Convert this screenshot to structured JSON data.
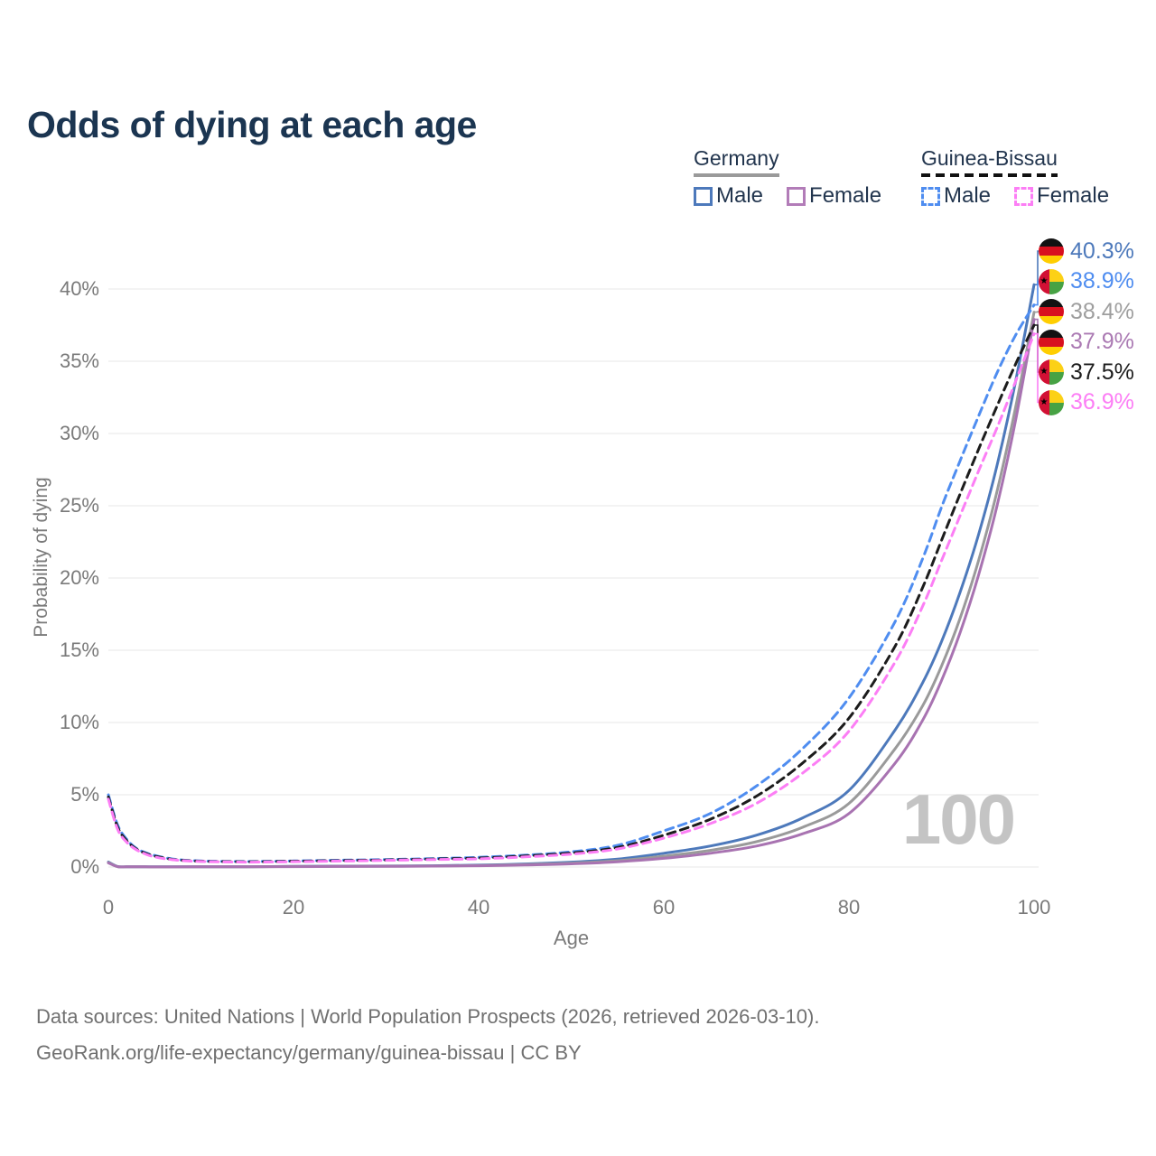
{
  "title": "Odds of dying at each age",
  "watermark": "100",
  "footer": {
    "line1": "Data sources: United Nations | World Population Prospects (2026, retrieved 2026-03-10).",
    "line2": "GeoRank.org/life-expectancy/germany/guinea-bissau | CC BY"
  },
  "legend": {
    "groups": [
      {
        "label": "Germany",
        "underline_style": "solid",
        "underline_color": "#9a9a9a",
        "items": [
          {
            "label": "Male",
            "color": "#4d79bb",
            "dash": false
          },
          {
            "label": "Female",
            "color": "#b27cb8",
            "dash": false
          }
        ]
      },
      {
        "label": "Guinea-Bissau",
        "underline_style": "dashed",
        "underline_color": "#111111",
        "items": [
          {
            "label": "Male",
            "color": "#4f8df0",
            "dash": true
          },
          {
            "label": "Female",
            "color": "#fc7ef5",
            "dash": true
          }
        ]
      }
    ]
  },
  "chart_data": {
    "type": "line",
    "title": "Odds of dying at each age",
    "xlabel": "Age",
    "ylabel": "Probability of dying",
    "xlim": [
      0,
      100
    ],
    "ylim": [
      0,
      42
    ],
    "x_ticks": [
      0,
      20,
      40,
      60,
      80,
      100
    ],
    "y_ticks": [
      {
        "value": 0,
        "label": "0%"
      },
      {
        "value": 5,
        "label": "5%"
      },
      {
        "value": 10,
        "label": "10%"
      },
      {
        "value": 15,
        "label": "15%"
      },
      {
        "value": 20,
        "label": "20%"
      },
      {
        "value": 25,
        "label": "25%"
      },
      {
        "value": 30,
        "label": "30%"
      },
      {
        "value": 35,
        "label": "35%"
      },
      {
        "value": 40,
        "label": "40%"
      }
    ],
    "grid": true,
    "legend_position": "top-right",
    "ages": [
      0,
      1,
      2,
      3,
      4,
      5,
      7,
      10,
      15,
      20,
      25,
      30,
      35,
      40,
      45,
      50,
      55,
      60,
      65,
      70,
      75,
      80,
      85,
      88,
      90,
      92,
      94,
      96,
      98,
      100
    ],
    "unit": "percent",
    "series": [
      {
        "id": "germany-male",
        "name": "Germany Male",
        "country": "Germany",
        "sex": "Male",
        "color": "#4d79bb",
        "dash": false,
        "end_label": "40.3%",
        "values": [
          0.35,
          0.03,
          0.02,
          0.015,
          0.012,
          0.01,
          0.01,
          0.012,
          0.02,
          0.05,
          0.06,
          0.07,
          0.09,
          0.13,
          0.21,
          0.34,
          0.55,
          0.95,
          1.45,
          2.2,
          3.4,
          5.3,
          9.5,
          12.8,
          15.6,
          19.0,
          23.0,
          27.8,
          33.6,
          40.3
        ]
      },
      {
        "id": "germany-combined",
        "name": "Germany Combined",
        "country": "Germany",
        "sex": "Combined",
        "color": "#9a9a9a",
        "dash": false,
        "end_label": "38.4%",
        "values": [
          0.31,
          0.027,
          0.018,
          0.013,
          0.011,
          0.009,
          0.009,
          0.011,
          0.016,
          0.035,
          0.045,
          0.055,
          0.07,
          0.1,
          0.17,
          0.27,
          0.44,
          0.75,
          1.15,
          1.75,
          2.75,
          4.4,
          8.2,
          11.2,
          13.9,
          17.2,
          21.2,
          26.0,
          31.8,
          38.4
        ]
      },
      {
        "id": "germany-female",
        "name": "Germany Female",
        "country": "Germany",
        "sex": "Female",
        "color": "#a873b1",
        "dash": false,
        "end_label": "37.9%",
        "values": [
          0.28,
          0.024,
          0.015,
          0.012,
          0.01,
          0.008,
          0.008,
          0.01,
          0.014,
          0.025,
          0.035,
          0.045,
          0.06,
          0.09,
          0.14,
          0.22,
          0.36,
          0.6,
          0.95,
          1.45,
          2.3,
          3.7,
          7.2,
          10.2,
          12.9,
          16.2,
          20.2,
          25.0,
          30.9,
          37.9
        ]
      },
      {
        "id": "guinea-bissau-male",
        "name": "Guinea-Bissau Male",
        "country": "Guinea-Bissau",
        "sex": "Male",
        "color": "#4f8df0",
        "dash": true,
        "end_label": "38.9%",
        "values": [
          5.0,
          2.9,
          1.9,
          1.3,
          1.0,
          0.8,
          0.55,
          0.42,
          0.38,
          0.42,
          0.47,
          0.52,
          0.58,
          0.67,
          0.82,
          1.05,
          1.5,
          2.5,
          3.7,
          5.6,
          8.2,
          11.7,
          17.0,
          21.4,
          24.9,
          28.1,
          31.2,
          34.2,
          36.8,
          38.9
        ]
      },
      {
        "id": "guinea-bissau-combined",
        "name": "Guinea-Bissau Combined",
        "country": "Guinea-Bissau",
        "sex": "Combined",
        "color": "#1c1c1c",
        "dash": true,
        "end_label": "37.5%",
        "values": [
          4.85,
          2.75,
          1.8,
          1.25,
          0.95,
          0.75,
          0.52,
          0.4,
          0.36,
          0.4,
          0.44,
          0.49,
          0.55,
          0.62,
          0.76,
          0.97,
          1.35,
          2.2,
          3.3,
          4.9,
          7.2,
          10.3,
          15.3,
          19.4,
          22.6,
          25.8,
          28.9,
          31.9,
          34.8,
          37.5
        ]
      },
      {
        "id": "guinea-bissau-female",
        "name": "Guinea-Bissau Female",
        "country": "Guinea-Bissau",
        "sex": "Female",
        "color": "#fc7ef5",
        "dash": true,
        "end_label": "36.9%",
        "values": [
          4.7,
          2.6,
          1.7,
          1.2,
          0.9,
          0.7,
          0.5,
          0.38,
          0.34,
          0.37,
          0.41,
          0.46,
          0.51,
          0.57,
          0.7,
          0.89,
          1.25,
          2.0,
          3.0,
          4.4,
          6.5,
          9.4,
          14.2,
          18.1,
          21.2,
          24.3,
          27.4,
          30.4,
          33.6,
          36.9
        ]
      }
    ],
    "end_labels": [
      {
        "series": "germany-male",
        "flag": "germany",
        "text": "40.3%",
        "color": "#4d79bb"
      },
      {
        "series": "guinea-bissau-male",
        "flag": "guinea-bissau",
        "text": "38.9%",
        "color": "#4f8df0"
      },
      {
        "series": "germany-combined",
        "flag": "germany",
        "text": "38.4%",
        "color": "#9e9e9e"
      },
      {
        "series": "germany-female",
        "flag": "germany",
        "text": "37.9%",
        "color": "#ab7ab3"
      },
      {
        "series": "guinea-bissau-combined",
        "flag": "guinea-bissau",
        "text": "37.5%",
        "color": "#1c1c1c"
      },
      {
        "series": "guinea-bissau-female",
        "flag": "guinea-bissau",
        "text": "36.9%",
        "color": "#fc7ef5"
      }
    ]
  }
}
